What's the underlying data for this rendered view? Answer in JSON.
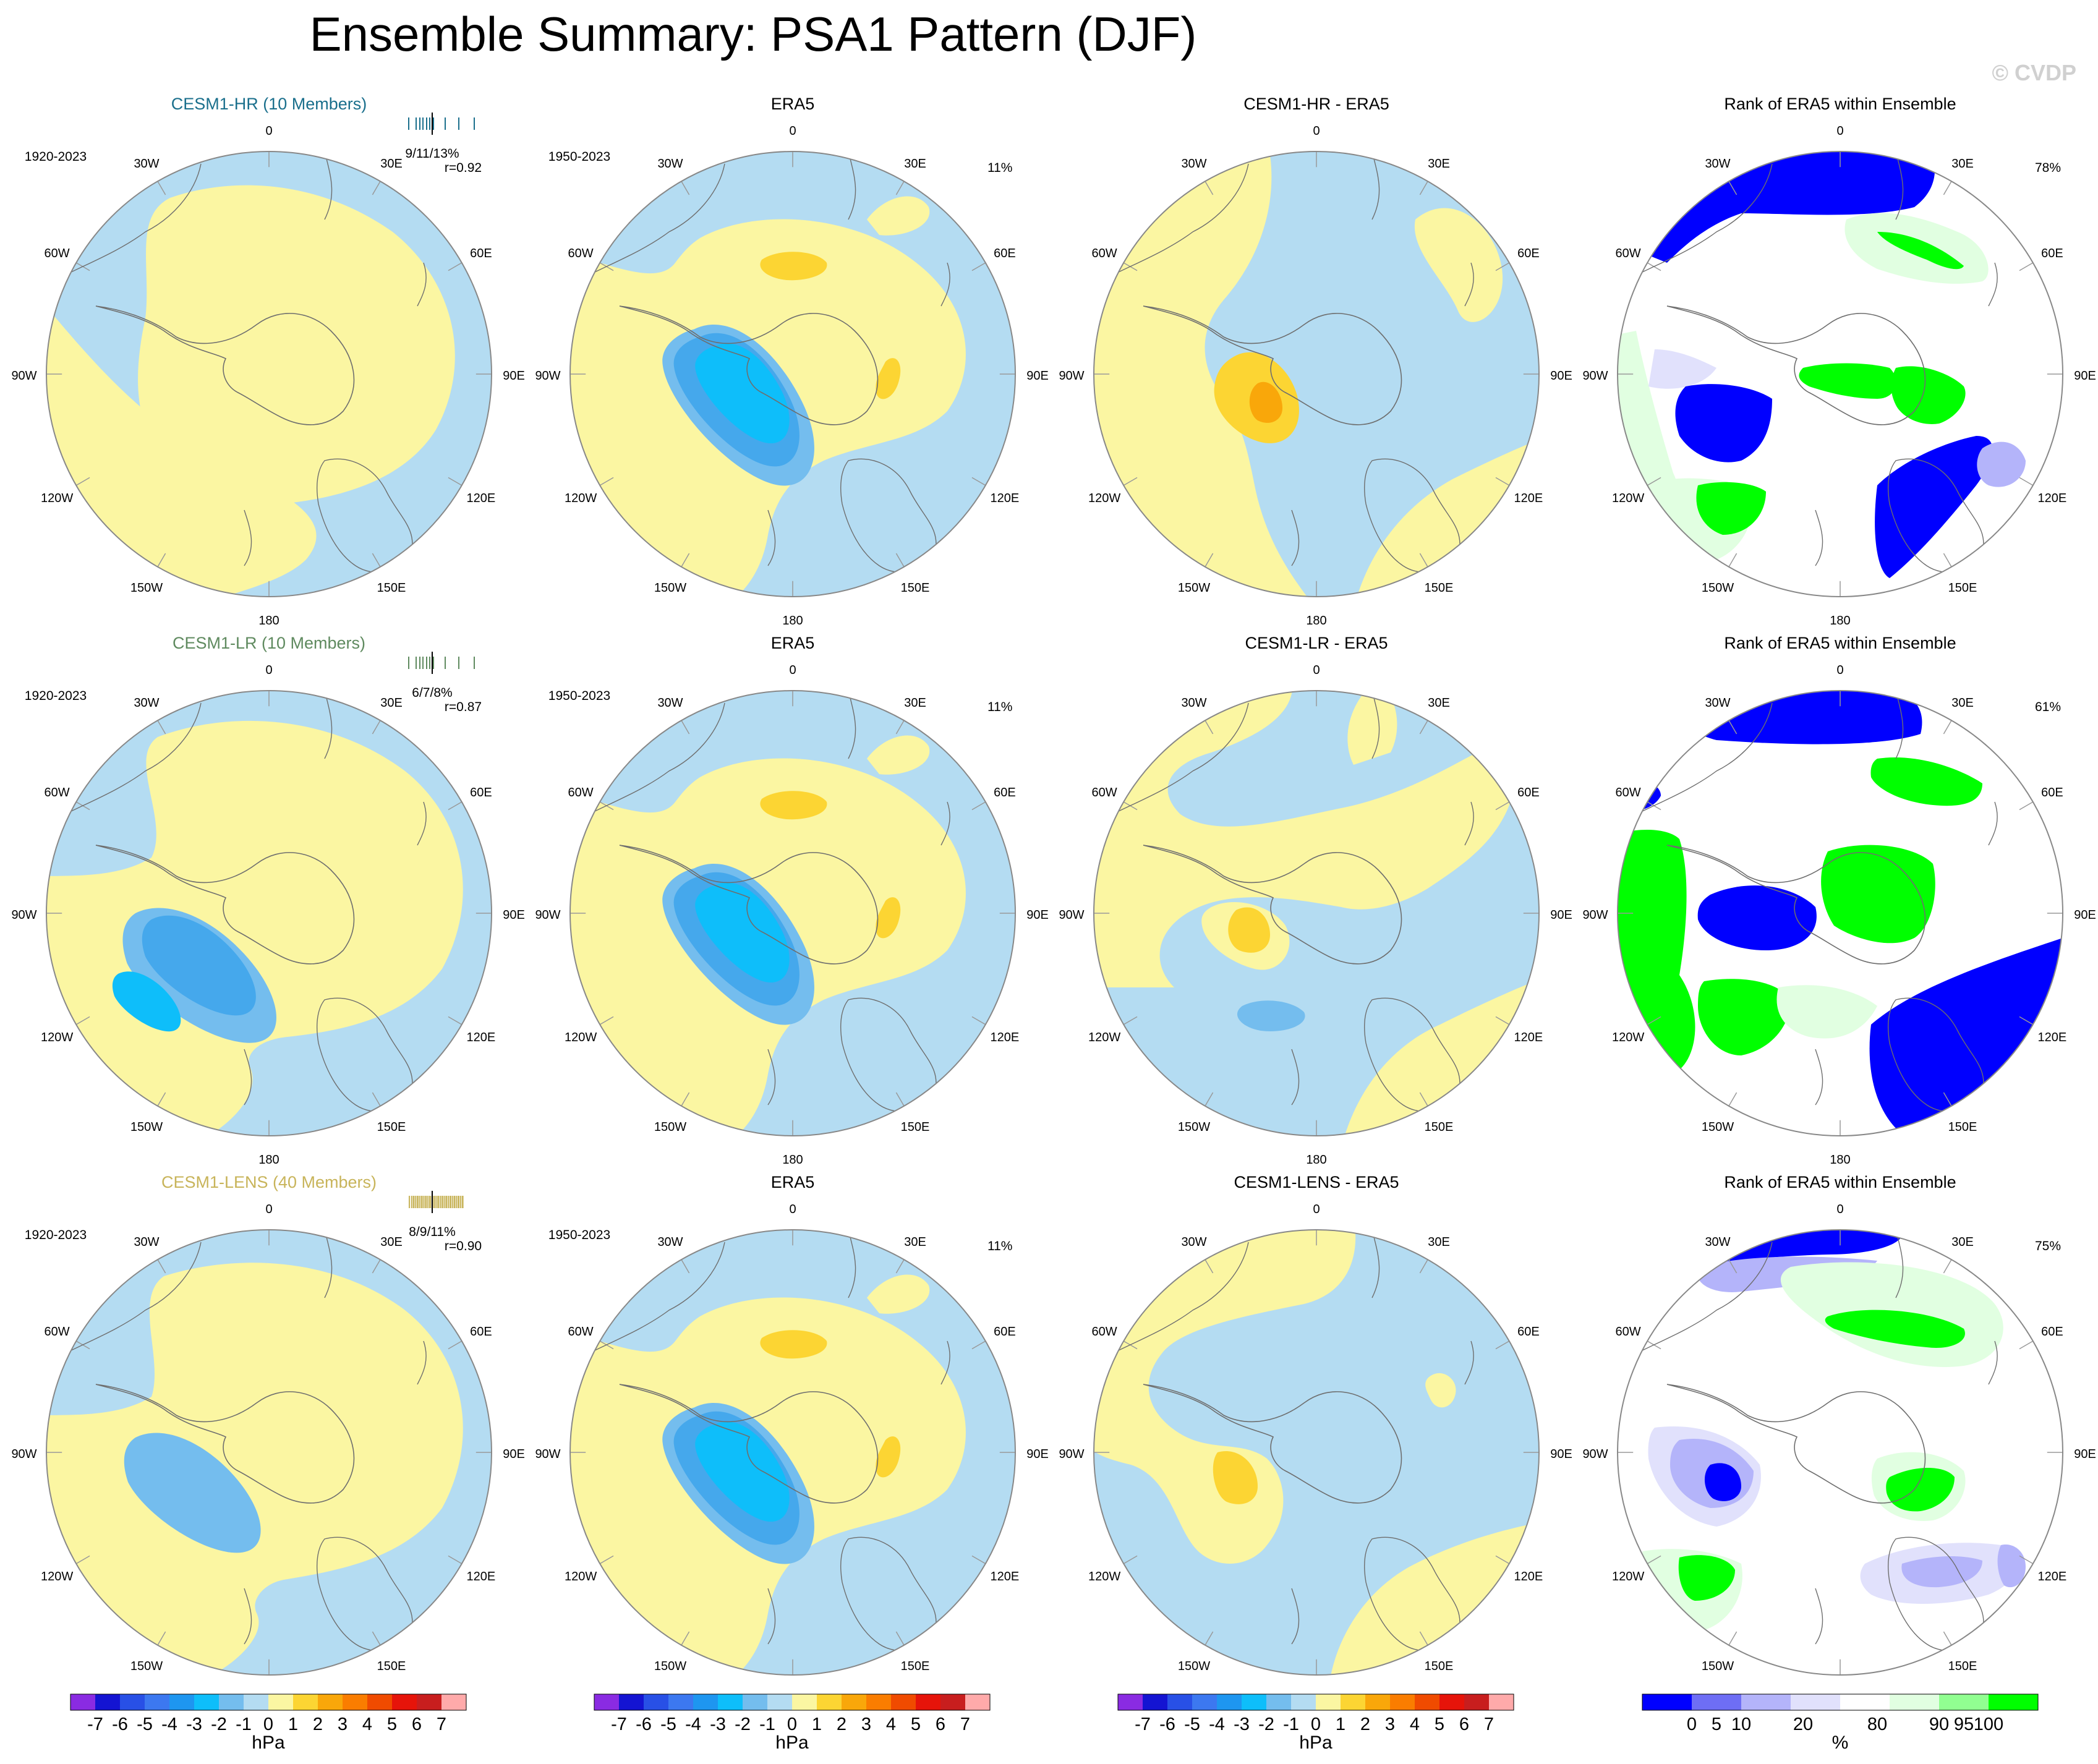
{
  "page": {
    "title": "Ensemble Summary: PSA1 Pattern (DJF)",
    "watermark": "© CVDP"
  },
  "lon_labels": [
    {
      "deg": 0,
      "text": "0"
    },
    {
      "deg": 30,
      "text": "30E"
    },
    {
      "deg": 60,
      "text": "60E"
    },
    {
      "deg": 90,
      "text": "90E"
    },
    {
      "deg": 120,
      "text": "120E"
    },
    {
      "deg": 150,
      "text": "150E"
    },
    {
      "deg": 180,
      "text": "180"
    },
    {
      "deg": -150,
      "text": "150W"
    },
    {
      "deg": -120,
      "text": "120W"
    },
    {
      "deg": -90,
      "text": "90W"
    },
    {
      "deg": -60,
      "text": "60W"
    },
    {
      "deg": -30,
      "text": "30W"
    }
  ],
  "colors": {
    "map_bg": "#b4dcf2",
    "pos1": "#fbf6a2",
    "pos2": "#fcd533",
    "pos3": "#f9a70a",
    "neg1": "#b4dcf2",
    "neg2": "#74bdee",
    "neg3": "#45a8ec",
    "neg4": "#0ebefa",
    "neg5": "#1f6bff",
    "rank_blue": "#0000ff",
    "rank_lightblue": "#b4b4fa",
    "rank_paleblue": "#e1e1fc",
    "rank_green": "#00ff00",
    "rank_lightgreen": "#91ff91",
    "rank_palegreen": "#e1ffe1"
  },
  "rows": [
    {
      "model": {
        "title": "CESM1-HR (10 Members)",
        "title_color": "#1a6f8c",
        "period": "1920-2023",
        "stats": "9/11/13%",
        "r": "r=0.92",
        "tick_color": "#1a6f8c"
      },
      "era5": {
        "title": "ERA5",
        "period": "1950-2023",
        "pct": "11%"
      },
      "diff": {
        "title": "CESM1-HR - ERA5"
      },
      "rank": {
        "title": "Rank of ERA5 within Ensemble",
        "pct": "78%"
      }
    },
    {
      "model": {
        "title": "CESM1-LR (10 Members)",
        "title_color": "#5f8a5f",
        "period": "1920-2023",
        "stats": "6/7/8%",
        "r": "r=0.87",
        "tick_color": "#5f8a5f"
      },
      "era5": {
        "title": "ERA5",
        "period": "1950-2023",
        "pct": "11%"
      },
      "diff": {
        "title": "CESM1-LR - ERA5"
      },
      "rank": {
        "title": "Rank of ERA5 within Ensemble",
        "pct": "61%"
      }
    },
    {
      "model": {
        "title": "CESM1-LENS (40 Members)",
        "title_color": "#c8b45a",
        "period": "1920-2023",
        "stats": "8/9/11%",
        "r": "r=0.90",
        "tick_color": "#c8b45a"
      },
      "era5": {
        "title": "ERA5",
        "period": "1950-2023",
        "pct": "11%"
      },
      "diff": {
        "title": "CESM1-LENS - ERA5"
      },
      "rank": {
        "title": "Rank of ERA5 within Ensemble",
        "pct": "75%"
      }
    }
  ],
  "colorbar_hpa": {
    "unit": "hPa",
    "colors": [
      "#8a2be2",
      "#1414d2",
      "#2850e6",
      "#3c78f0",
      "#1e96f0",
      "#0ebefa",
      "#74bdee",
      "#b4dcf2",
      "#fbf6a2",
      "#fcd533",
      "#f9a70a",
      "#fa7d00",
      "#f04b00",
      "#e6140a",
      "#c81e1e",
      "#ffaaaa"
    ],
    "labels": [
      "-7",
      "-6",
      "-5",
      "-4",
      "-3",
      "-2",
      "-1",
      "0",
      "1",
      "2",
      "3",
      "4",
      "5",
      "6",
      "7"
    ]
  },
  "colorbar_pct": {
    "unit": "%",
    "colors": [
      "#0000ff",
      "#6e6ef5",
      "#b4b4fa",
      "#e1e1fc",
      "#ffffff",
      "#e1ffe1",
      "#91ff91",
      "#00ff00"
    ],
    "labels": [
      "0",
      "5",
      "10",
      "20",
      "80",
      "90",
      "95",
      "100"
    ]
  }
}
